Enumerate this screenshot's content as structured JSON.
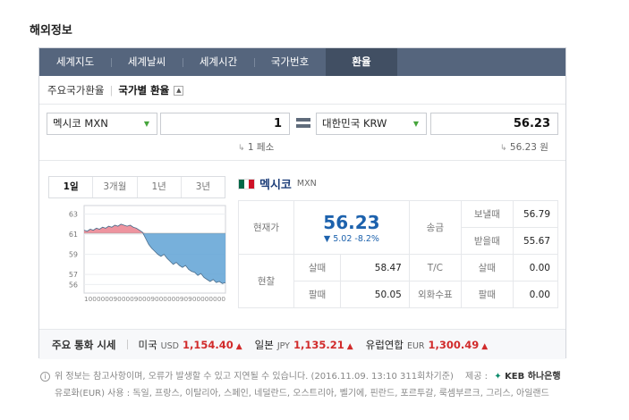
{
  "section_title": "해외정보",
  "tabs": [
    {
      "label": "세계지도"
    },
    {
      "label": "세계날씨"
    },
    {
      "label": "세계시간"
    },
    {
      "label": "국가번호"
    },
    {
      "label": "환율"
    }
  ],
  "subnav": {
    "item1": "주요국가환율",
    "item2": "국가별 환율"
  },
  "converter": {
    "from_currency": "멕시코 MXN",
    "from_amount": "1",
    "to_currency": "대한민국 KRW",
    "to_amount": "56.23",
    "from_unit": "1 페소",
    "to_unit": "56.23 원"
  },
  "period_tabs": [
    "1일",
    "3개월",
    "1년",
    "3년"
  ],
  "chart_data": {
    "type": "area",
    "y_ticks": [
      "63",
      "61",
      "59",
      "57",
      "56"
    ],
    "ylim": [
      55.5,
      63.5
    ],
    "x_tick_text": "1000000900009000900000090900000000",
    "reference": 61.1,
    "values": [
      61.4,
      61.3,
      61.5,
      61.4,
      61.6,
      61.5,
      61.7,
      61.6,
      61.8,
      61.7,
      61.9,
      61.8,
      62.0,
      61.9,
      61.8,
      61.9,
      61.7,
      61.6,
      61.4,
      61.2,
      60.6,
      60.0,
      59.6,
      59.3,
      59.0,
      58.8,
      59.0,
      58.6,
      58.3,
      58.0,
      58.2,
      57.9,
      57.7,
      57.9,
      57.5,
      57.3,
      57.2,
      56.9,
      57.1,
      56.7,
      56.5,
      56.3,
      56.5,
      56.2,
      56.3,
      56.1,
      56.2
    ],
    "colors": {
      "above": "#e8707f",
      "below": "#5fa2d5"
    }
  },
  "info": {
    "country_name": "멕시코",
    "country_code": "MXN",
    "current_label": "현재가",
    "current_value": "56.23",
    "change": "▼ 5.02 -8.2%",
    "remit_label": "송금",
    "send_label": "보낼때",
    "send_value": "56.79",
    "receive_label": "받을때",
    "receive_value": "55.67",
    "cash_label": "현찰",
    "buy_label": "살때",
    "buy_value": "58.47",
    "sell_label": "팔때",
    "sell_value": "50.05",
    "tc_label": "T/C",
    "tc_buy_label": "살때",
    "tc_buy_value": "0.00",
    "check_label": "외화수표",
    "check_sell_label": "팔때",
    "check_sell_value": "0.00"
  },
  "major": {
    "title": "주요 통화 시세",
    "items": [
      {
        "name": "미국",
        "code": "USD",
        "value": "1,154.40",
        "arrow": "▲"
      },
      {
        "name": "일본",
        "code": "JPY",
        "value": "1,135.21",
        "arrow": "▲"
      },
      {
        "name": "유럽연합",
        "code": "EUR",
        "value": "1,300.49",
        "arrow": "▲"
      }
    ]
  },
  "footer": {
    "notice": "위 정보는 참고사항이며, 오류가 발생할 수 있고 지연될 수 있습니다. (2016.11.09. 13:10 311회차기준)",
    "provider_label": "제공 :",
    "provider": "KEB 하나은행",
    "euro_note": "유로화(EUR) 사용 : 독일, 프랑스, 이탈리아, 스페인, 네덜란드, 오스트리아, 벨기에, 핀란드, 포르투갈, 룩셈부르크, 그리스, 아일랜드"
  },
  "flag_colors": [
    "#006847",
    "#ffffff",
    "#ce1126"
  ]
}
